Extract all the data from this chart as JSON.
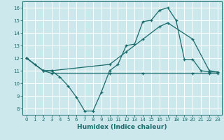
{
  "xlabel": "Humidex (Indice chaleur)",
  "bg_color": "#cce8ec",
  "line_color": "#1a6b6b",
  "grid_color": "#ffffff",
  "xlim": [
    -0.5,
    23.5
  ],
  "ylim": [
    7.5,
    16.5
  ],
  "xticks": [
    0,
    1,
    2,
    3,
    4,
    5,
    6,
    7,
    8,
    9,
    10,
    11,
    12,
    13,
    14,
    15,
    16,
    17,
    18,
    19,
    20,
    21,
    22,
    23
  ],
  "yticks": [
    8,
    9,
    10,
    11,
    12,
    13,
    14,
    15,
    16
  ],
  "line1_x": [
    0,
    1,
    2,
    3,
    4,
    5,
    6,
    7,
    8,
    9,
    10,
    11,
    12,
    13,
    14,
    15,
    16,
    17,
    18,
    19,
    20,
    21,
    22,
    23
  ],
  "line1_y": [
    12,
    11.5,
    11,
    11,
    10.5,
    9.8,
    8.9,
    7.8,
    7.8,
    9.3,
    11.0,
    11.5,
    13.0,
    13.1,
    14.9,
    15.0,
    15.8,
    16.0,
    15.0,
    11.9,
    11.9,
    11.0,
    10.9,
    10.9
  ],
  "line2_x": [
    0,
    2,
    3,
    10,
    12,
    14,
    16,
    17,
    20,
    22,
    23
  ],
  "line2_y": [
    12,
    11,
    11,
    11.5,
    12.5,
    13.5,
    14.5,
    14.8,
    13.5,
    11.0,
    10.9
  ],
  "line3_x": [
    0,
    2,
    3,
    10,
    14,
    20,
    22,
    23
  ],
  "line3_y": [
    12,
    11,
    10.8,
    10.8,
    10.8,
    10.8,
    10.8,
    10.8
  ]
}
